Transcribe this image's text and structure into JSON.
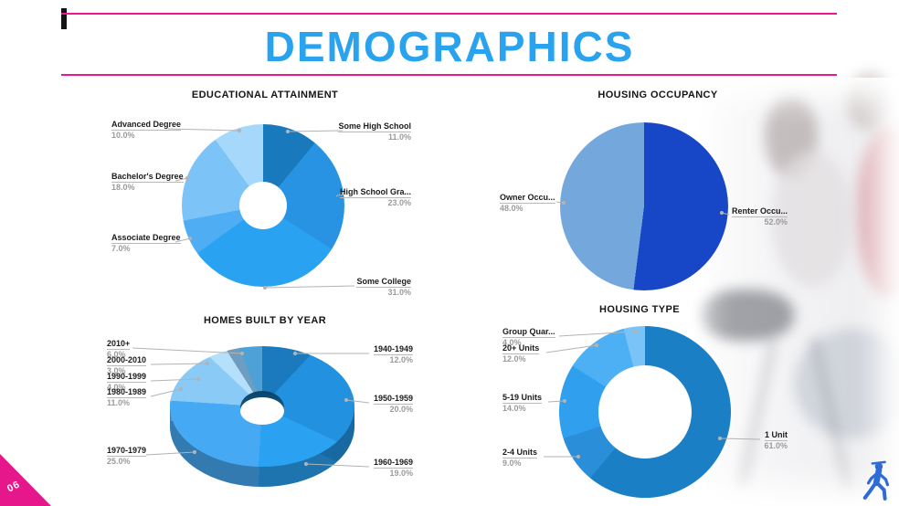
{
  "page": {
    "title": "DEMOGRAPHICS",
    "page_number": "06",
    "accent_pink": "#ed188f",
    "accent_blue": "#2aa3ee"
  },
  "chart_data": [
    {
      "id": "educational-attainment",
      "type": "pie",
      "variant": "donut",
      "title": "EDUCATIONAL ATTAINMENT",
      "legend_position": "callout-labels",
      "slices": [
        {
          "label": "Some High School",
          "pct_label": "11.0%",
          "value": 11.0,
          "color": "#1879bd"
        },
        {
          "label": "High School Gra...",
          "pct_label": "23.0%",
          "value": 23.0,
          "color": "#2793e2"
        },
        {
          "label": "Some College",
          "pct_label": "31.0%",
          "value": 31.0,
          "color": "#2aa2f2"
        },
        {
          "label": "Associate Degree",
          "pct_label": "7.0%",
          "value": 7.0,
          "color": "#4fadf3"
        },
        {
          "label": "Bachelor's Degree",
          "pct_label": "18.0%",
          "value": 18.0,
          "color": "#7cc4f7"
        },
        {
          "label": "Advanced Degree",
          "pct_label": "10.0%",
          "value": 10.0,
          "color": "#a5d8fa"
        }
      ]
    },
    {
      "id": "housing-occupancy",
      "type": "pie",
      "variant": "pie",
      "title": "HOUSING OCCUPANCY",
      "legend_position": "callout-labels",
      "slices": [
        {
          "label": "Renter Occu...",
          "pct_label": "52.0%",
          "value": 52.0,
          "color": "#1746c6"
        },
        {
          "label": "Owner Occu...",
          "pct_label": "48.0%",
          "value": 48.0,
          "color": "#74a7db"
        }
      ]
    },
    {
      "id": "homes-built-by-year",
      "type": "pie",
      "variant": "donut-3d",
      "title": "HOMES BUILT BY YEAR",
      "legend_position": "callout-labels",
      "slices": [
        {
          "label": "1940-1949",
          "pct_label": "12.0%",
          "value": 12.0,
          "color": "#1a7abd"
        },
        {
          "label": "1950-1959",
          "pct_label": "20.0%",
          "value": 20.0,
          "color": "#2191e0"
        },
        {
          "label": "1960-1969",
          "pct_label": "19.0%",
          "value": 19.0,
          "color": "#2aa1f1"
        },
        {
          "label": "1970-1979",
          "pct_label": "25.0%",
          "value": 25.0,
          "color": "#45aaf3"
        },
        {
          "label": "1980-1989",
          "pct_label": "11.0%",
          "value": 11.0,
          "color": "#89caf7"
        },
        {
          "label": "1990-1999",
          "pct_label": "4.0%",
          "value": 4.0,
          "color": "#b5e0fb"
        },
        {
          "label": "2000-2010",
          "pct_label": "3.0%",
          "value": 3.0,
          "color": "#6f9dc0"
        },
        {
          "label": "2010+",
          "pct_label": "6.0%",
          "value": 6.0,
          "color": "#4ea1d6"
        }
      ]
    },
    {
      "id": "housing-type",
      "type": "pie",
      "variant": "donut",
      "title": "HOUSING TYPE",
      "legend_position": "callout-labels",
      "slices": [
        {
          "label": "1 Unit",
          "pct_label": "61.0%",
          "value": 61.0,
          "color": "#1a7fc5"
        },
        {
          "label": "2-4 Units",
          "pct_label": "9.0%",
          "value": 9.0,
          "color": "#2b8ed9"
        },
        {
          "label": "5-19 Units",
          "pct_label": "14.0%",
          "value": 14.0,
          "color": "#2f9fee"
        },
        {
          "label": "20+ Units",
          "pct_label": "12.0%",
          "value": 12.0,
          "color": "#4db0f4"
        },
        {
          "label": "Group Quar...",
          "pct_label": "4.0%",
          "value": 4.0,
          "color": "#79c3f7"
        }
      ]
    }
  ],
  "logo": {
    "name": "walking-person",
    "color": "#2f6bd7"
  }
}
